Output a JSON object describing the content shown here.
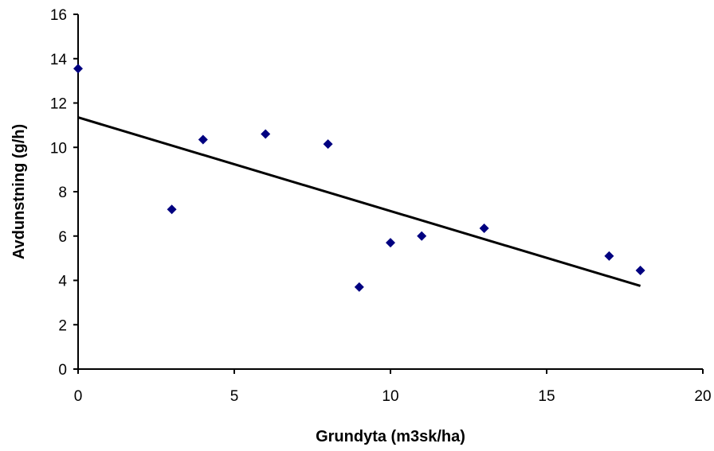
{
  "chart_data": {
    "type": "scatter",
    "title": "",
    "xlabel": "Grundyta (m3sk/ha)",
    "ylabel": "Avdunstning (g/h)",
    "xlim": [
      0,
      20
    ],
    "ylim": [
      0,
      16
    ],
    "x_ticks": [
      0,
      5,
      10,
      15,
      20
    ],
    "y_ticks": [
      0,
      2,
      4,
      6,
      8,
      10,
      12,
      14,
      16
    ],
    "grid": false,
    "legend": "none",
    "series": [
      {
        "marker": "diamond",
        "color": "#000080",
        "points": [
          {
            "x": 0,
            "y": 13.55
          },
          {
            "x": 3,
            "y": 7.2
          },
          {
            "x": 4,
            "y": 10.35
          },
          {
            "x": 6,
            "y": 10.6
          },
          {
            "x": 8,
            "y": 10.15
          },
          {
            "x": 9,
            "y": 3.7
          },
          {
            "x": 10,
            "y": 5.7
          },
          {
            "x": 11,
            "y": 6.0
          },
          {
            "x": 13,
            "y": 6.35
          },
          {
            "x": 17,
            "y": 5.1
          },
          {
            "x": 18,
            "y": 4.45
          }
        ]
      }
    ],
    "trendline": {
      "type": "linear",
      "color": "#000000",
      "x": [
        0,
        18
      ],
      "y": [
        11.35,
        3.75
      ]
    }
  }
}
